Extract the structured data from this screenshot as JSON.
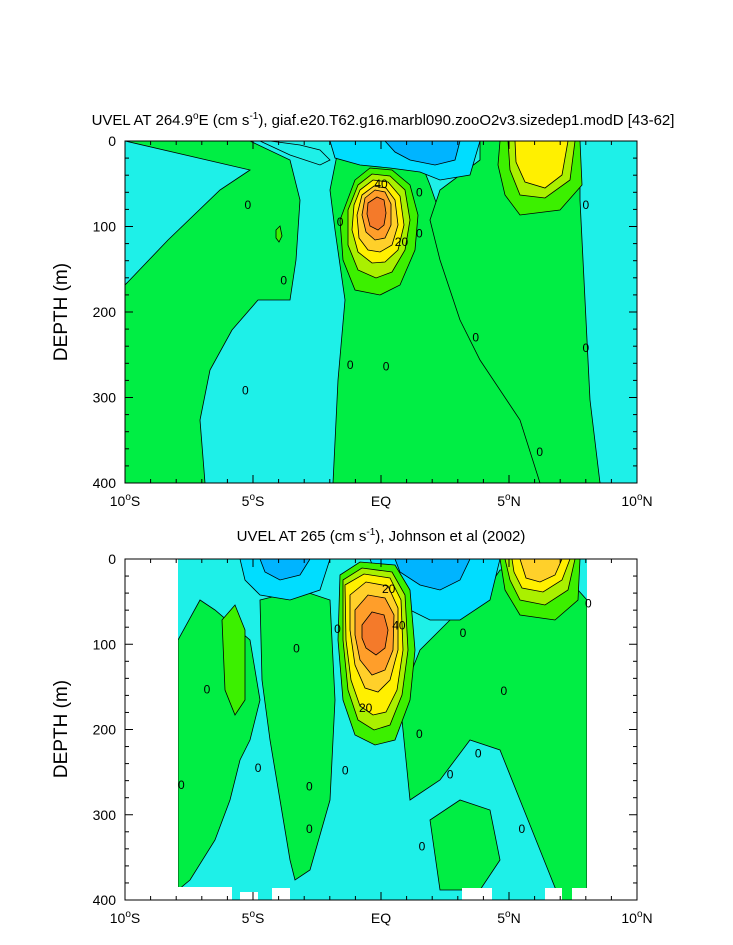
{
  "figure": {
    "colors": {
      "neg_dark": "#00b4ff",
      "neg_mid": "#00ddff",
      "neg_light": "#1ef0e8",
      "zero_pos_low": "#1efc9a",
      "green": "#00ee44",
      "green_bright": "#3cf000",
      "yellow_green": "#aaf000",
      "yellow": "#fff000",
      "gold": "#ffd02a",
      "orange": "#ff9e2a",
      "orange_dark": "#f47a2a"
    }
  },
  "chart_data": [
    {
      "type": "contour",
      "title_main": "UVEL AT 264.9",
      "title_deg": "o",
      "title_units_pre": "E (cm s",
      "title_units_exp": "-1",
      "title_rest": "), giaf.e20.T62.g16.marbl090.zooO2v3.sizedep1.modD [43-62]",
      "xlabel": "",
      "ylabel": "DEPTH (m)",
      "xlim": [
        -10,
        10
      ],
      "ylim": [
        0,
        400
      ],
      "x_ticks": [
        {
          "value": -10,
          "num": "10",
          "deg": "o",
          "hem": "S"
        },
        {
          "value": -5,
          "num": "5",
          "deg": "o",
          "hem": "S"
        },
        {
          "value": 0,
          "num": "EQ",
          "deg": "",
          "hem": ""
        },
        {
          "value": 5,
          "num": "5",
          "deg": "o",
          "hem": "N"
        },
        {
          "value": 10,
          "num": "10",
          "deg": "o",
          "hem": "N"
        }
      ],
      "y_ticks": [
        0,
        100,
        200,
        300,
        400
      ],
      "y_tick_labels": [
        "0",
        "100",
        "200",
        "300",
        "400"
      ],
      "data_extent_x": [
        -10,
        10
      ],
      "contour_labels": [
        {
          "text": "40",
          "x": 0.0,
          "y": 50
        },
        {
          "text": "20",
          "x": 0.8,
          "y": 118
        },
        {
          "text": "0",
          "x": -5.2,
          "y": 75
        },
        {
          "text": "0",
          "x": -3.8,
          "y": 163
        },
        {
          "text": "0",
          "x": -1.6,
          "y": 95
        },
        {
          "text": "0",
          "x": 1.5,
          "y": 60
        },
        {
          "text": "0",
          "x": 1.5,
          "y": 108
        },
        {
          "text": "0",
          "x": -1.2,
          "y": 262
        },
        {
          "text": "0",
          "x": 0.2,
          "y": 264
        },
        {
          "text": "0",
          "x": -5.3,
          "y": 292
        },
        {
          "text": "0",
          "x": 3.7,
          "y": 230
        },
        {
          "text": "0",
          "x": 8.0,
          "y": 75
        },
        {
          "text": "0",
          "x": 8.0,
          "y": 242
        },
        {
          "text": "0",
          "x": 6.2,
          "y": 364
        }
      ]
    },
    {
      "type": "contour",
      "title_main": "UVEL AT 265 (cm s",
      "title_units_exp": "-1",
      "title_rest": "), Johnson et al (2002)",
      "xlabel": "",
      "ylabel": "DEPTH (m)",
      "xlim": [
        -10,
        10
      ],
      "ylim": [
        0,
        400
      ],
      "x_ticks": [
        {
          "value": -10,
          "num": "10",
          "deg": "o",
          "hem": "S"
        },
        {
          "value": -5,
          "num": "5",
          "deg": "o",
          "hem": "S"
        },
        {
          "value": 0,
          "num": "EQ",
          "deg": "",
          "hem": ""
        },
        {
          "value": 5,
          "num": "5",
          "deg": "o",
          "hem": "N"
        },
        {
          "value": 10,
          "num": "10",
          "deg": "o",
          "hem": "N"
        }
      ],
      "y_ticks": [
        0,
        100,
        200,
        300,
        400
      ],
      "y_tick_labels": [
        "0",
        "100",
        "200",
        "300",
        "400"
      ],
      "data_extent_x": [
        -8,
        8
      ],
      "contour_labels": [
        {
          "text": "20",
          "x": 0.3,
          "y": 35
        },
        {
          "text": "40",
          "x": 0.7,
          "y": 78
        },
        {
          "text": "20",
          "x": -0.6,
          "y": 175
        },
        {
          "text": "0",
          "x": -1.7,
          "y": 82
        },
        {
          "text": "0",
          "x": -3.3,
          "y": 105
        },
        {
          "text": "0",
          "x": -6.8,
          "y": 153
        },
        {
          "text": "0",
          "x": -7.8,
          "y": 265
        },
        {
          "text": "0",
          "x": -4.8,
          "y": 245
        },
        {
          "text": "0",
          "x": -2.8,
          "y": 267
        },
        {
          "text": "0",
          "x": -2.8,
          "y": 317
        },
        {
          "text": "0",
          "x": -1.4,
          "y": 248
        },
        {
          "text": "0",
          "x": 1.5,
          "y": 205
        },
        {
          "text": "0",
          "x": 1.6,
          "y": 337
        },
        {
          "text": "0",
          "x": 3.2,
          "y": 87
        },
        {
          "text": "0",
          "x": 2.7,
          "y": 253
        },
        {
          "text": "0",
          "x": 3.8,
          "y": 228
        },
        {
          "text": "0",
          "x": 4.8,
          "y": 155
        },
        {
          "text": "0",
          "x": 5.5,
          "y": 317
        },
        {
          "text": "0",
          "x": 8.1,
          "y": 52
        }
      ]
    }
  ]
}
